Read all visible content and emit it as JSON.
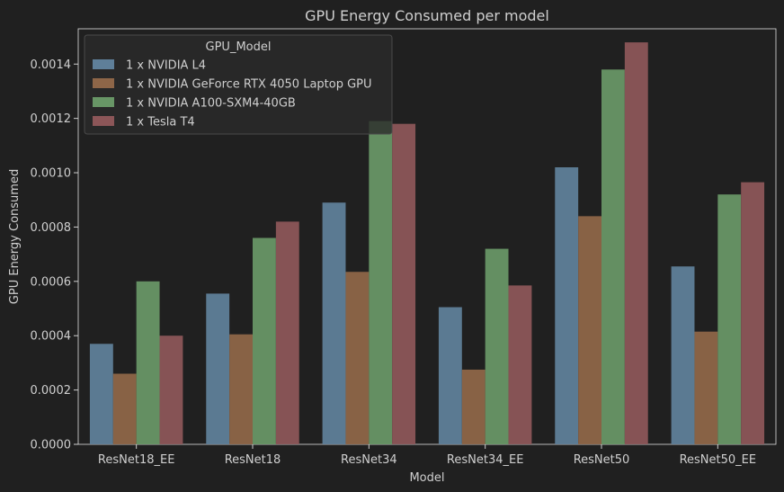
{
  "chart_data": {
    "type": "bar",
    "title": "GPU Energy Consumed per model",
    "xlabel": "Model",
    "ylabel": "GPU Energy Consumed",
    "ylim": [
      0,
      0.00153
    ],
    "yticks": [
      "0.0000",
      "0.0002",
      "0.0004",
      "0.0006",
      "0.0008",
      "0.0010",
      "0.0012",
      "0.0014"
    ],
    "categories": [
      "ResNet18_EE",
      "ResNet18",
      "ResNet34",
      "ResNet34_EE",
      "ResNet50",
      "ResNet50_EE"
    ],
    "legend_title": "GPU_Model",
    "legend_position": "top-left",
    "grid": false,
    "series": [
      {
        "name": "1 x NVIDIA L4",
        "color": "#5f7f99",
        "values": [
          0.00037,
          0.000555,
          0.00089,
          0.000505,
          0.00102,
          0.000655
        ]
      },
      {
        "name": "1 x NVIDIA GeForce RTX 4050 Laptop GPU",
        "color": "#8e6648",
        "values": [
          0.00026,
          0.000405,
          0.000635,
          0.000275,
          0.00084,
          0.000415
        ]
      },
      {
        "name": "1 x NVIDIA A100-SXM4-40GB",
        "color": "#689666",
        "values": [
          0.0006,
          0.00076,
          0.00119,
          0.00072,
          0.00138,
          0.00092
        ]
      },
      {
        "name": "1 x Tesla T4",
        "color": "#8c5658",
        "values": [
          0.0004,
          0.00082,
          0.00118,
          0.000585,
          0.00148,
          0.000965
        ]
      }
    ]
  }
}
